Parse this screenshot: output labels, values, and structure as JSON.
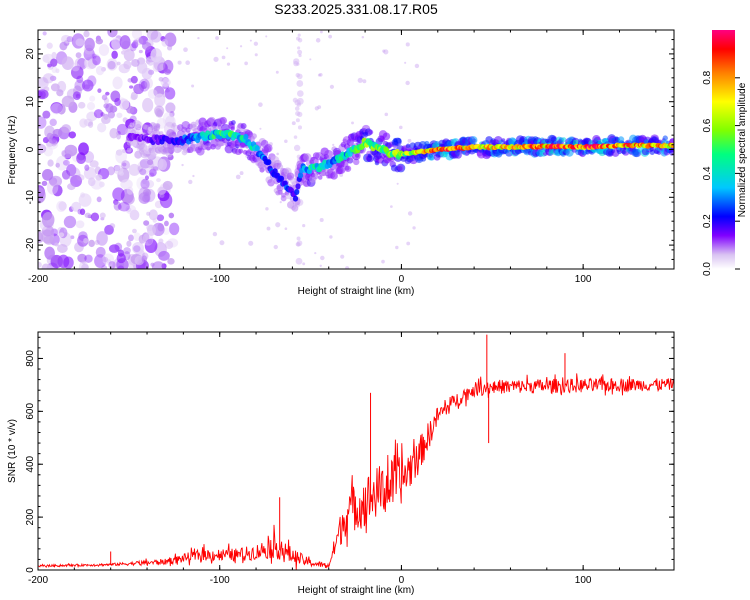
{
  "chart_data": [
    {
      "type": "scatter",
      "subtype": "spectrogram",
      "title": "S233.2025.331.08.17.R05",
      "xlabel": "Height of straight line (km)",
      "ylabel": "Frequency (Hz)",
      "xlim": [
        -200,
        150
      ],
      "ylim": [
        -25,
        25
      ],
      "xticks": [
        -200,
        -100,
        0,
        100
      ],
      "yticks": [
        -20,
        -10,
        0,
        10,
        20
      ],
      "colorbar": {
        "label": "Normalized spectral amplitude",
        "range": [
          0,
          1
        ],
        "ticks": [
          0.0,
          0.2,
          0.4,
          0.6,
          0.8
        ],
        "colors": [
          "#ffffff",
          "#c8a0f0",
          "#7a00ff",
          "#0000ff",
          "#00c8ff",
          "#00ff80",
          "#80ff00",
          "#ffff00",
          "#ff8000",
          "#ff0000",
          "#ff0080"
        ]
      },
      "ridge": {
        "x": [
          -160,
          -140,
          -120,
          -105,
          -95,
          -85,
          -75,
          -68,
          -62,
          -58,
          -55,
          -50,
          -40,
          -30,
          -25,
          -20,
          -15,
          -10,
          -5,
          0,
          10,
          20,
          40,
          60,
          80,
          100,
          120,
          150
        ],
        "y": [
          3,
          2,
          2,
          3,
          3,
          2,
          -2,
          -6,
          -8,
          -10,
          -4,
          -4,
          -3,
          -1,
          0,
          1.5,
          0.5,
          0,
          -1,
          -1,
          -0.5,
          0,
          0.5,
          0.5,
          0.7,
          0.5,
          0.8,
          0.8
        ],
        "amplitude": [
          0.15,
          0.2,
          0.3,
          0.45,
          0.5,
          0.45,
          0.35,
          0.3,
          0.3,
          0.25,
          0.4,
          0.45,
          0.4,
          0.45,
          0.5,
          0.6,
          0.55,
          0.55,
          0.6,
          0.6,
          0.7,
          0.85,
          0.7,
          0.75,
          0.8,
          0.85,
          0.8,
          0.75
        ]
      },
      "noise_region": {
        "x": [
          -200,
          -140
        ],
        "amplitude": 0.15
      }
    },
    {
      "type": "line",
      "xlabel": "Height of straight line (km)",
      "ylabel": "SNR (10 * v/v)",
      "xlim": [
        -200,
        150
      ],
      "ylim": [
        0,
        900
      ],
      "xticks": [
        -200,
        -100,
        0,
        100
      ],
      "yticks": [
        0,
        200,
        400,
        600,
        800
      ],
      "color": "#ff0000",
      "envelope": {
        "x": [
          -200,
          -160,
          -130,
          -110,
          -90,
          -80,
          -70,
          -60,
          -50,
          -40,
          -35,
          -30,
          -20,
          -10,
          0,
          10,
          20,
          30,
          40,
          50,
          100,
          150
        ],
        "mean": [
          15,
          20,
          30,
          55,
          55,
          65,
          85,
          50,
          25,
          15,
          120,
          210,
          250,
          300,
          330,
          430,
          580,
          640,
          680,
          690,
          695,
          700
        ],
        "spread": [
          8,
          10,
          25,
          50,
          55,
          65,
          100,
          70,
          30,
          20,
          120,
          180,
          220,
          220,
          200,
          150,
          80,
          60,
          60,
          60,
          60,
          50
        ]
      },
      "spikes": [
        {
          "x": -160,
          "y": 70
        },
        {
          "x": -67,
          "y": 275
        },
        {
          "x": -17,
          "y": 670
        },
        {
          "x": 47,
          "y": 890
        },
        {
          "x": 48,
          "y": 480
        },
        {
          "x": 90,
          "y": 820
        }
      ]
    }
  ]
}
